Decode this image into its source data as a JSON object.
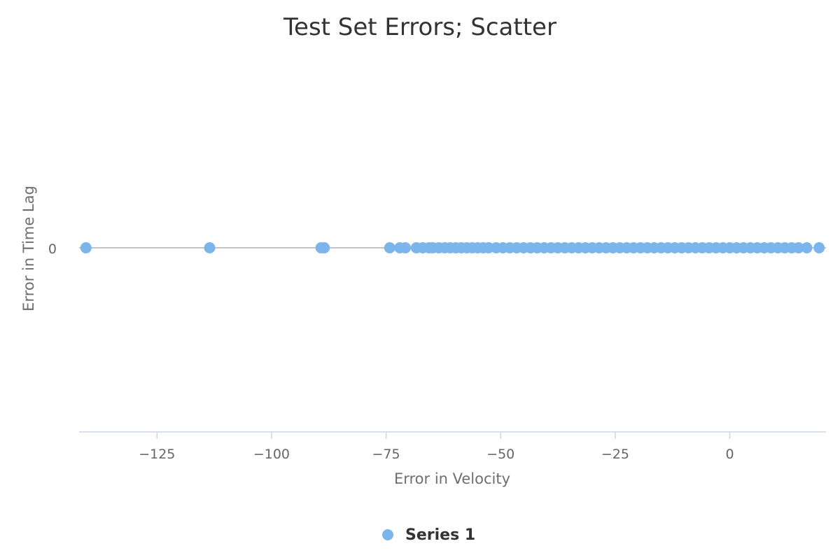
{
  "chart_data": {
    "type": "scatter",
    "title": "Test Set Errors; Scatter",
    "xlabel": "Error in Velocity",
    "ylabel": "Error in Time Lag",
    "xlim": [
      -142,
      21
    ],
    "x_ticks": [
      -125,
      -100,
      -75,
      -50,
      -25,
      0
    ],
    "x_tick_labels": [
      "−125",
      "−100",
      "−75",
      "−50",
      "−25",
      "0"
    ],
    "y_ticks": [
      0
    ],
    "y_tick_labels": [
      "0"
    ],
    "grid": false,
    "legend_position": "bottom-center",
    "series": [
      {
        "name": "Series 1",
        "color": "#7cb5ec",
        "x": [
          -140.5,
          -113.5,
          -89.2,
          -88.5,
          -74.2,
          -72.0,
          -70.8,
          -68.4,
          -67.0,
          -65.6,
          -64.8,
          -63.5,
          -62.2,
          -61.0,
          -59.8,
          -58.6,
          -57.4,
          -56.2,
          -55.0,
          -53.8,
          -52.6,
          -51.0,
          -49.5,
          -48.0,
          -46.5,
          -45.0,
          -43.5,
          -42.0,
          -40.5,
          -39.0,
          -37.5,
          -36.0,
          -34.5,
          -33.0,
          -31.5,
          -30.0,
          -28.5,
          -27.0,
          -25.5,
          -24.0,
          -22.5,
          -21.0,
          -19.5,
          -18.0,
          -16.5,
          -15.0,
          -13.5,
          -12.0,
          -10.5,
          -9.0,
          -7.5,
          -6.0,
          -4.5,
          -3.0,
          -1.5,
          0.0,
          1.5,
          3.0,
          4.5,
          6.0,
          7.5,
          9.0,
          10.5,
          12.0,
          13.5,
          15.0,
          16.8,
          19.5
        ],
        "y": [
          0,
          0,
          0,
          0,
          0,
          0,
          0,
          0,
          0,
          0,
          0,
          0,
          0,
          0,
          0,
          0,
          0,
          0,
          0,
          0,
          0,
          0,
          0,
          0,
          0,
          0,
          0,
          0,
          0,
          0,
          0,
          0,
          0,
          0,
          0,
          0,
          0,
          0,
          0,
          0,
          0,
          0,
          0,
          0,
          0,
          0,
          0,
          0,
          0,
          0,
          0,
          0,
          0,
          0,
          0,
          0,
          0,
          0,
          0,
          0,
          0,
          0,
          0,
          0,
          0,
          0,
          0,
          0
        ]
      }
    ]
  }
}
